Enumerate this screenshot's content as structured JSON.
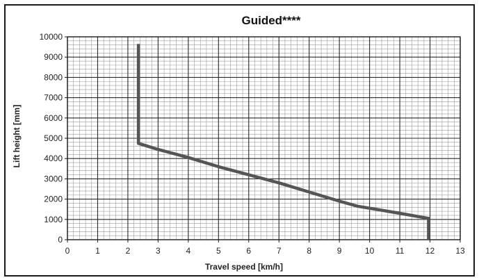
{
  "chart_data": {
    "type": "line",
    "title": "Guided****",
    "xlabel": "Travel speed [km/h]",
    "ylabel": "Lift height [mm]",
    "xlim": [
      0,
      13
    ],
    "ylim": [
      0,
      10000
    ],
    "xticks": [
      0,
      1,
      2,
      3,
      4,
      5,
      6,
      7,
      8,
      9,
      10,
      11,
      12,
      13
    ],
    "yticks": [
      0,
      1000,
      2000,
      3000,
      4000,
      5000,
      6000,
      7000,
      8000,
      9000,
      10000
    ],
    "grid": true,
    "minor_grid": true,
    "series": [
      {
        "x": [
          2.35,
          2.35,
          3.0,
          4.0,
          5.0,
          6.0,
          7.0,
          8.0,
          9.0,
          9.6,
          10.0,
          11.0,
          11.95,
          11.95
        ],
        "y": [
          9650,
          4750,
          4450,
          4050,
          3600,
          3200,
          2800,
          2350,
          1900,
          1650,
          1550,
          1300,
          1050,
          0
        ],
        "color": "#555555"
      }
    ]
  }
}
